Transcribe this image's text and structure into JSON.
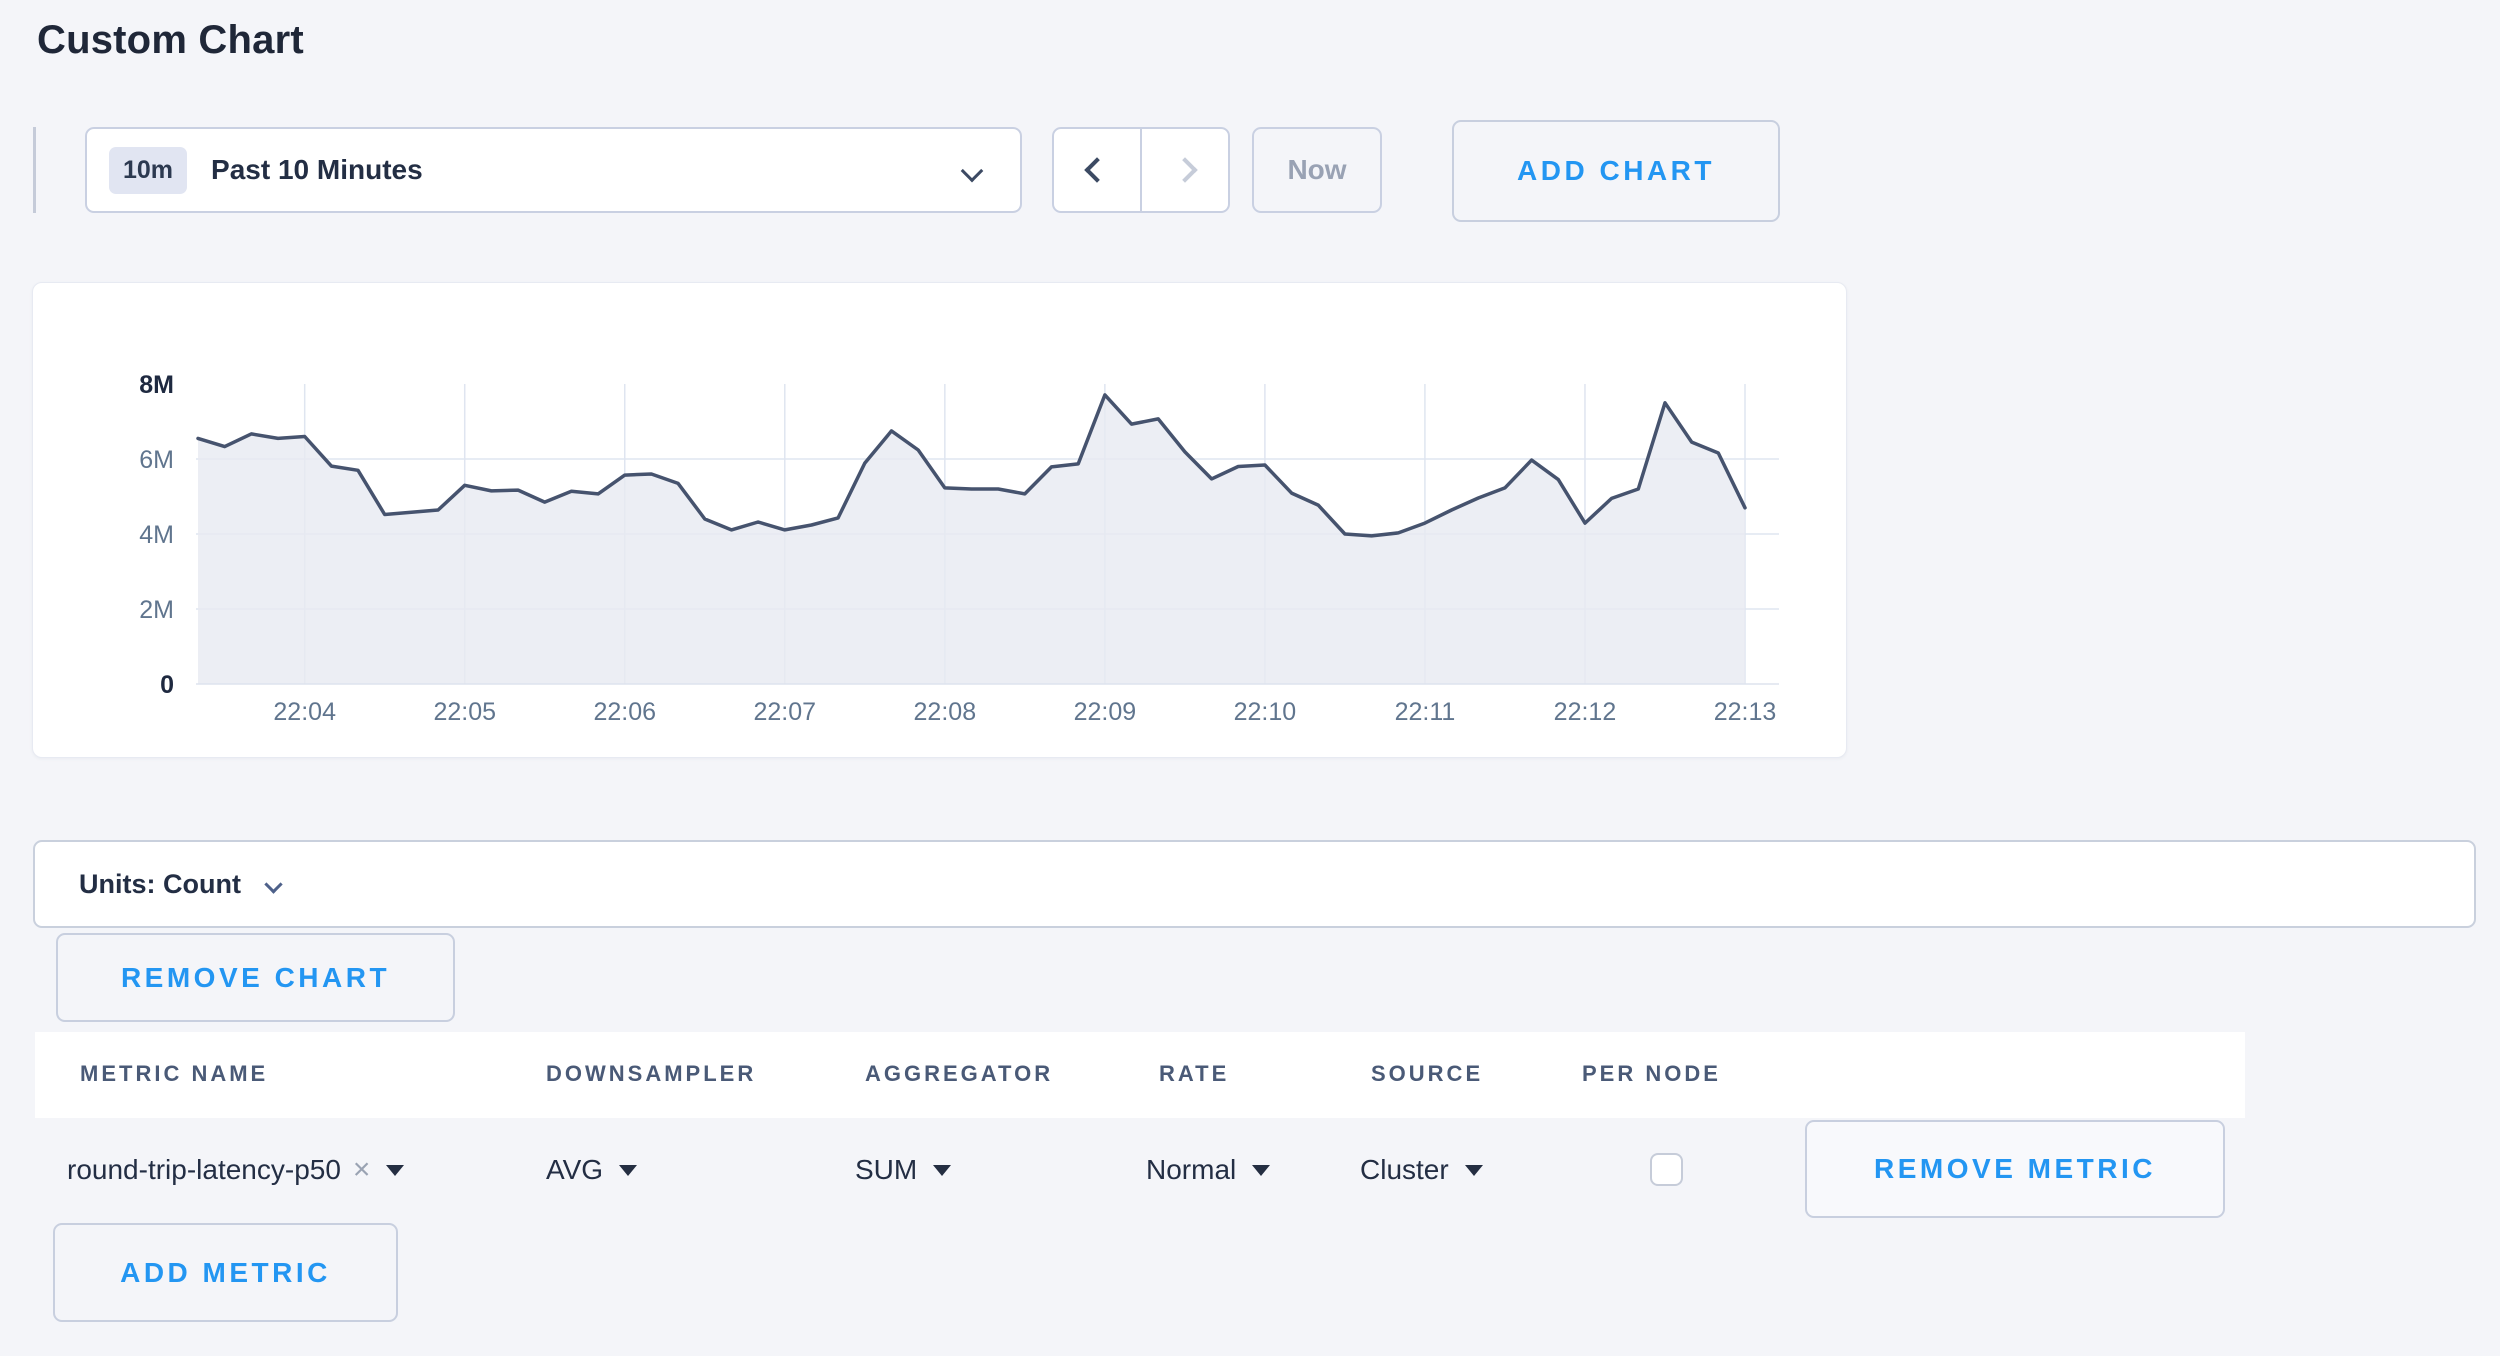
{
  "page": {
    "title": "Custom Chart"
  },
  "toolbar": {
    "time_range": {
      "badge": "10m",
      "label": "Past 10 Minutes"
    },
    "now_label": "Now",
    "add_chart_label": "ADD CHART"
  },
  "units_bar": {
    "label": "Units: Count"
  },
  "buttons": {
    "remove_chart_label": "REMOVE CHART",
    "add_metric_label": "ADD METRIC"
  },
  "metrics_table": {
    "headers": [
      "METRIC NAME",
      "DOWNSAMPLER",
      "AGGREGATOR",
      "RATE",
      "SOURCE",
      "PER NODE"
    ],
    "rows": [
      {
        "metric_name": "round-trip-latency-p50",
        "remove_token": "×",
        "downsampler": "AVG",
        "aggregator": "SUM",
        "rate": "Normal",
        "source": "Cluster",
        "per_node_checked": false,
        "remove_label": "REMOVE METRIC"
      }
    ]
  },
  "colors": {
    "accent_blue": "#2396f2",
    "page_bg": "#f4f5f9",
    "line": "#46536e",
    "area_fill": "#e7eaf1",
    "grid": "#dfe5f0",
    "text_dark": "#232e44",
    "text_muted": "#60758e",
    "header_text": "#4a5a77",
    "disabled_text": "#99a2b4"
  },
  "chart_data": {
    "type": "area",
    "series_name": "round-trip-latency-p50",
    "unit": "Count",
    "value_unit_scale": "millions",
    "ylim_millions": [
      0,
      8
    ],
    "grid": true,
    "legend": "none",
    "y_axis": {
      "ticks": [
        {
          "label": "8M",
          "value": 8,
          "emphasis": true
        },
        {
          "label": "6M",
          "value": 6,
          "emphasis": false
        },
        {
          "label": "4M",
          "value": 4,
          "emphasis": false
        },
        {
          "label": "2M",
          "value": 2,
          "emphasis": false
        },
        {
          "label": "0",
          "value": 0,
          "emphasis": true
        }
      ]
    },
    "x_axis": {
      "ticks": [
        "22:04",
        "22:05",
        "22:06",
        "22:07",
        "22:08",
        "22:09",
        "22:10",
        "22:11",
        "22:12",
        "22:13"
      ],
      "start_time": "22:03:20",
      "step_seconds": 10
    },
    "x_times": [
      "22:03:20",
      "22:03:30",
      "22:03:40",
      "22:03:50",
      "22:04:00",
      "22:04:10",
      "22:04:20",
      "22:04:30",
      "22:04:40",
      "22:04:50",
      "22:05:00",
      "22:05:10",
      "22:05:20",
      "22:05:30",
      "22:05:40",
      "22:05:50",
      "22:06:00",
      "22:06:10",
      "22:06:20",
      "22:06:30",
      "22:06:40",
      "22:06:50",
      "22:07:00",
      "22:07:10",
      "22:07:20",
      "22:07:30",
      "22:07:40",
      "22:07:50",
      "22:08:00",
      "22:08:10",
      "22:08:20",
      "22:08:30",
      "22:08:40",
      "22:08:50",
      "22:09:00",
      "22:09:10",
      "22:09:20",
      "22:09:30",
      "22:09:40",
      "22:09:50",
      "22:10:00",
      "22:10:10",
      "22:10:20",
      "22:10:30",
      "22:10:40",
      "22:10:50",
      "22:11:00",
      "22:11:10",
      "22:11:20",
      "22:11:30",
      "22:11:40",
      "22:11:50",
      "22:12:00",
      "22:12:10",
      "22:12:20",
      "22:12:30",
      "22:12:40",
      "22:12:50",
      "22:13:00"
    ],
    "values_millions": [
      6.55,
      6.33,
      6.67,
      6.55,
      6.6,
      5.81,
      5.7,
      4.52,
      4.58,
      4.64,
      5.3,
      5.15,
      5.17,
      4.85,
      5.14,
      5.07,
      5.57,
      5.6,
      5.35,
      4.4,
      4.11,
      4.32,
      4.11,
      4.24,
      4.43,
      5.89,
      6.75,
      6.24,
      5.23,
      5.2,
      5.2,
      5.07,
      5.79,
      5.87,
      7.71,
      6.93,
      7.07,
      6.19,
      5.47,
      5.8,
      5.84,
      5.09,
      4.77,
      4.0,
      3.95,
      4.03,
      4.29,
      4.64,
      4.96,
      5.23,
      5.97,
      5.45,
      4.29,
      4.95,
      5.2,
      7.5,
      6.45,
      6.16,
      4.7
    ]
  }
}
